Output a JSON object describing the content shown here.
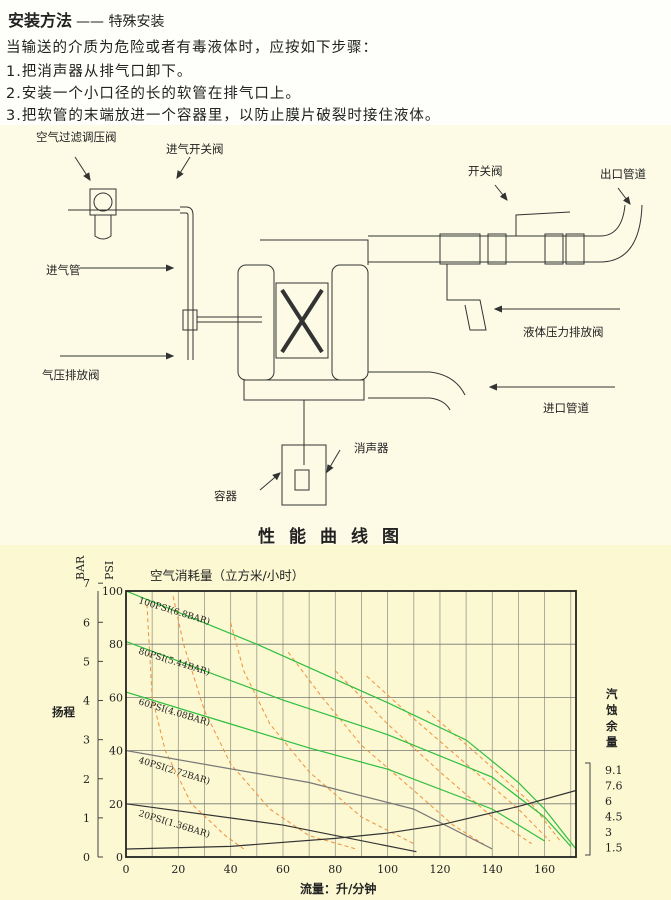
{
  "header": {
    "title": "安装方法",
    "subtitle": "—— 特殊安装",
    "intro": "当输送的介质为危险或者有毒液体时，应按如下步骤：",
    "steps": [
      "1.把消声器从排气口卸下。",
      "2.安装一个小口径的长的软管在排气口上。",
      "3.把软管的末端放进一个容器里，以防止膜片破裂时接住液体。"
    ]
  },
  "diagram": {
    "labels": {
      "air_filter_regulator": "空气过滤调压阀",
      "air_inlet_valve": "进气开关阀",
      "air_inlet_pipe": "进气管",
      "air_pressure_relief": "气压排放阀",
      "switch_valve": "开关阀",
      "outlet_pipe": "出口管道",
      "liquid_pressure_relief": "液体压力排放阀",
      "inlet_pipe": "进口管道",
      "muffler": "消声器",
      "container": "容器"
    }
  },
  "chart_title": "性能曲线图",
  "chart_data": {
    "type": "line",
    "title": "空气消耗量（立方米/小时）",
    "xlabel": "流量：升/分钟",
    "ylabel": "扬程",
    "y2label": "汽蚀余量",
    "left_units": [
      "BAR",
      "PSI"
    ],
    "xlim": [
      0,
      172
    ],
    "ylim": [
      0,
      100
    ],
    "grid": true,
    "x_ticks": [
      0,
      20,
      40,
      60,
      80,
      100,
      120,
      140,
      160
    ],
    "psi_ticks": [
      0,
      20,
      40,
      60,
      80,
      100
    ],
    "bar_ticks": [
      0,
      1,
      2,
      3,
      4,
      5,
      6,
      7
    ],
    "npsh_ticks": [
      "9.1",
      "7.6",
      "6",
      "4.5",
      "3",
      "1.5"
    ],
    "colors": {
      "pressure_high": "#2fbf3f",
      "pressure_low": "#333333",
      "air": "#f0903a",
      "background": "#fbf8d2"
    },
    "series": [
      {
        "name": "100PSI(6.8BAR)",
        "color": "#2fbf3f",
        "points": [
          [
            0,
            100
          ],
          [
            50,
            80
          ],
          [
            100,
            58
          ],
          [
            130,
            44
          ],
          [
            150,
            28
          ],
          [
            160,
            18
          ],
          [
            172,
            3
          ]
        ]
      },
      {
        "name": "80PSI(5.44BAR)",
        "color": "#2fbf3f",
        "points": [
          [
            0,
            81
          ],
          [
            30,
            70
          ],
          [
            60,
            59
          ],
          [
            100,
            46
          ],
          [
            140,
            30
          ],
          [
            160,
            15
          ],
          [
            170,
            4
          ]
        ]
      },
      {
        "name": "60PSI(4.08BAR)",
        "color": "#2fbf3f",
        "points": [
          [
            0,
            62
          ],
          [
            40,
            50
          ],
          [
            70,
            41
          ],
          [
            100,
            33
          ],
          [
            140,
            18
          ],
          [
            160,
            6
          ]
        ]
      },
      {
        "name": "40PSI(2.72BAR)",
        "color": "#777777",
        "points": [
          [
            0,
            40
          ],
          [
            70,
            28
          ],
          [
            110,
            18
          ],
          [
            140,
            3
          ]
        ]
      },
      {
        "name": "20PSI(1.36BAR)",
        "color": "#333333",
        "points": [
          [
            0,
            20
          ],
          [
            60,
            12
          ],
          [
            111,
            2
          ]
        ]
      },
      {
        "color": "#333333",
        "points": [
          [
            0,
            3
          ],
          [
            40,
            4
          ],
          [
            80,
            7
          ],
          [
            100,
            9
          ],
          [
            120,
            12
          ],
          [
            150,
            19
          ],
          [
            172,
            25
          ]
        ]
      }
    ],
    "air_curves": [
      [
        [
          8,
          95
        ],
        [
          10,
          60
        ],
        [
          15,
          40
        ],
        [
          25,
          20
        ],
        [
          38,
          8
        ],
        [
          45,
          3
        ]
      ],
      [
        [
          18,
          98
        ],
        [
          22,
          80
        ],
        [
          30,
          55
        ],
        [
          40,
          35
        ],
        [
          55,
          18
        ],
        [
          70,
          8
        ],
        [
          88,
          3
        ]
      ],
      [
        [
          40,
          88
        ],
        [
          45,
          70
        ],
        [
          55,
          50
        ],
        [
          70,
          32
        ],
        [
          90,
          15
        ],
        [
          110,
          5
        ]
      ],
      [
        [
          62,
          77
        ],
        [
          75,
          60
        ],
        [
          90,
          42
        ],
        [
          110,
          25
        ],
        [
          125,
          12
        ],
        [
          138,
          4
        ]
      ],
      [
        [
          80,
          70
        ],
        [
          100,
          50
        ],
        [
          120,
          32
        ],
        [
          140,
          15
        ],
        [
          155,
          5
        ]
      ],
      [
        [
          92,
          68
        ],
        [
          110,
          52
        ],
        [
          130,
          35
        ],
        [
          150,
          18
        ],
        [
          162,
          6
        ]
      ],
      [
        [
          115,
          55
        ],
        [
          135,
          38
        ],
        [
          155,
          20
        ],
        [
          166,
          6
        ]
      ]
    ]
  }
}
